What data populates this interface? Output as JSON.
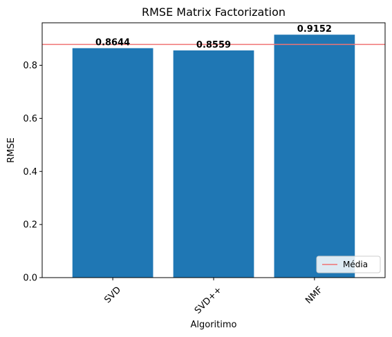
{
  "chart_data": {
    "type": "bar",
    "title": "RMSE Matrix Factorization",
    "xlabel": "Algoritimo",
    "ylabel": "RMSE",
    "categories": [
      "SVD",
      "SVD++",
      "NMF"
    ],
    "values": [
      0.8644,
      0.8559,
      0.9152
    ],
    "value_labels": [
      "0.8644",
      "0.8559",
      "0.9152"
    ],
    "ylim": [
      0,
      0.96
    ],
    "yticks": [
      0.0,
      0.2,
      0.4,
      0.6,
      0.8
    ],
    "ytick_labels": [
      "0.0",
      "0.2",
      "0.4",
      "0.6",
      "0.8"
    ],
    "mean_line": {
      "value": 0.8785,
      "label": "Média"
    },
    "legend": {
      "position": "lower-right",
      "entries": [
        "Média"
      ]
    },
    "grid": false,
    "bar_color": "#1f77b4",
    "mean_line_color": "#f07373",
    "xtick_rotation_deg": 45
  }
}
